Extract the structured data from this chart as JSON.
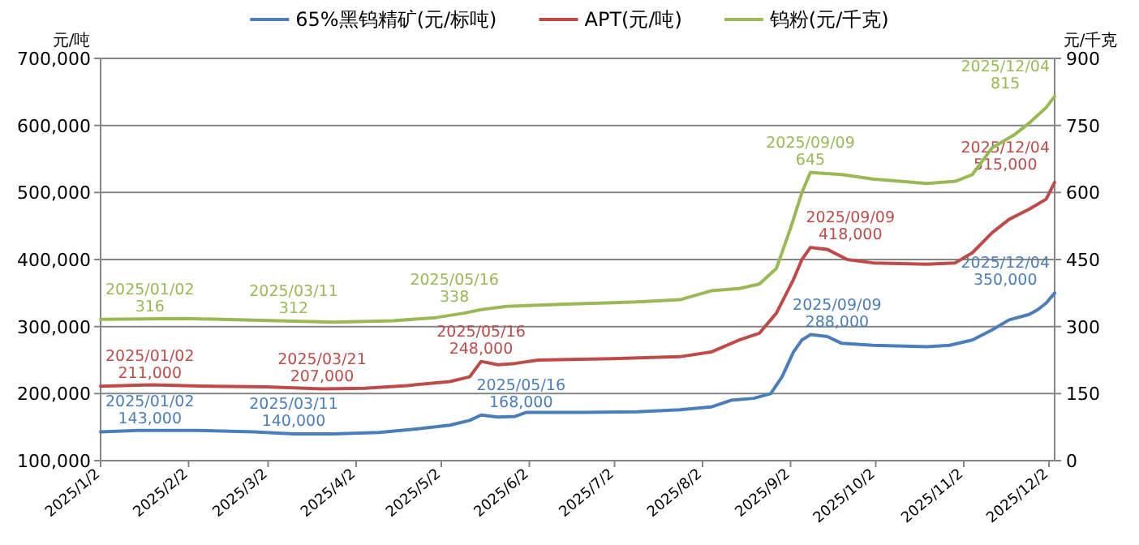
{
  "chart_data": {
    "type": "line",
    "ylabel": "元/吨",
    "y2label": "元/千克",
    "legend": "top",
    "grid": "y",
    "marker": "none",
    "line_style": "solid",
    "xlim": [
      "2025-01-02",
      "2025-12-04"
    ],
    "xticks": [
      {
        "value": "2025-01-02",
        "label": "2025/1/2"
      },
      {
        "value": "2025-02-02",
        "label": "2025/2/2"
      },
      {
        "value": "2025-03-02",
        "label": "2025/3/2"
      },
      {
        "value": "2025-04-02",
        "label": "2025/4/2"
      },
      {
        "value": "2025-05-02",
        "label": "2025/5/2"
      },
      {
        "value": "2025-06-02",
        "label": "2025/6/2"
      },
      {
        "value": "2025-07-02",
        "label": "2025/7/2"
      },
      {
        "value": "2025-08-02",
        "label": "2025/8/2"
      },
      {
        "value": "2025-09-02",
        "label": "2025/9/2"
      },
      {
        "value": "2025-10-02",
        "label": "2025/10/2"
      },
      {
        "value": "2025-11-02",
        "label": "2025/11/2"
      },
      {
        "value": "2025-12-02",
        "label": "2025/12/2"
      }
    ],
    "ylim": [
      100000,
      700000
    ],
    "yticks": [
      {
        "value": 100000,
        "label": "100,000"
      },
      {
        "value": 200000,
        "label": "200,000"
      },
      {
        "value": 300000,
        "label": "300,000"
      },
      {
        "value": 400000,
        "label": "400,000"
      },
      {
        "value": 500000,
        "label": "500,000"
      },
      {
        "value": 600000,
        "label": "600,000"
      },
      {
        "value": 700000,
        "label": "700,000"
      }
    ],
    "y2lim": [
      0,
      900
    ],
    "y2ticks": [
      0,
      150,
      300,
      450,
      600,
      750,
      900
    ],
    "series": [
      {
        "name": "65%黑钨精矿(元/标吨)",
        "color": "#4a7ebb",
        "x": [
          "2025-01-02",
          "2025-01-15",
          "2025-02-05",
          "2025-02-25",
          "2025-03-11",
          "2025-03-25",
          "2025-04-10",
          "2025-04-25",
          "2025-05-05",
          "2025-05-12",
          "2025-05-16",
          "2025-05-22",
          "2025-05-28",
          "2025-06-01",
          "2025-06-20",
          "2025-07-10",
          "2025-07-25",
          "2025-08-05",
          "2025-08-12",
          "2025-08-20",
          "2025-08-26",
          "2025-08-30",
          "2025-09-03",
          "2025-09-06",
          "2025-09-09",
          "2025-09-15",
          "2025-09-20",
          "2025-10-01",
          "2025-10-20",
          "2025-10-28",
          "2025-11-05",
          "2025-11-12",
          "2025-11-18",
          "2025-11-25",
          "2025-11-28",
          "2025-12-01",
          "2025-12-04"
        ],
        "values": [
          143000,
          145000,
          145000,
          143000,
          140000,
          140000,
          142000,
          148000,
          153000,
          160000,
          168000,
          165000,
          166000,
          172000,
          172000,
          173000,
          176000,
          180000,
          190000,
          193000,
          200000,
          225000,
          262000,
          280000,
          288000,
          285000,
          275000,
          272000,
          270000,
          272000,
          280000,
          295000,
          310000,
          318000,
          325000,
          335000,
          350000
        ],
        "value_labels": [
          "2025/01/02\n143,000",
          null,
          null,
          null,
          "2025/03/11\n140,000",
          null,
          null,
          null,
          null,
          null,
          "2025/05/16\n168,000",
          null,
          null,
          null,
          null,
          null,
          null,
          null,
          null,
          null,
          null,
          null,
          null,
          null,
          "2025/09/09\n288,000",
          null,
          null,
          null,
          null,
          null,
          null,
          null,
          null,
          null,
          null,
          null,
          "2025/12/04\n350,000"
        ]
      },
      {
        "name": "APT(元/吨)",
        "color": "#be4b48",
        "x": [
          "2025-01-02",
          "2025-01-20",
          "2025-02-10",
          "2025-03-01",
          "2025-03-21",
          "2025-04-05",
          "2025-04-20",
          "2025-05-05",
          "2025-05-12",
          "2025-05-16",
          "2025-05-22",
          "2025-05-28",
          "2025-06-05",
          "2025-07-01",
          "2025-07-25",
          "2025-08-05",
          "2025-08-15",
          "2025-08-22",
          "2025-08-28",
          "2025-09-03",
          "2025-09-06",
          "2025-09-09",
          "2025-09-15",
          "2025-09-22",
          "2025-10-01",
          "2025-10-20",
          "2025-10-30",
          "2025-11-05",
          "2025-11-12",
          "2025-11-18",
          "2025-11-25",
          "2025-12-01",
          "2025-12-04"
        ],
        "values": [
          211000,
          213000,
          211000,
          210000,
          207000,
          208000,
          212000,
          218000,
          225000,
          248000,
          243000,
          245000,
          250000,
          252000,
          255000,
          262000,
          280000,
          290000,
          320000,
          370000,
          400000,
          418000,
          415000,
          400000,
          395000,
          393000,
          395000,
          410000,
          440000,
          460000,
          475000,
          490000,
          515000
        ],
        "value_labels": [
          "2025/01/02\n211,000",
          null,
          null,
          null,
          "2025/03/21\n207,000",
          null,
          null,
          null,
          null,
          "2025/05/16\n248,000",
          null,
          null,
          null,
          null,
          null,
          null,
          null,
          null,
          null,
          null,
          null,
          "2025/09/09\n418,000",
          null,
          null,
          null,
          null,
          null,
          null,
          null,
          null,
          null,
          null,
          "2025/12/04\n515,000"
        ]
      },
      {
        "name": "钨粉(元/千克)",
        "color": "#98b954",
        "axis": "y2",
        "x": [
          "2025-01-02",
          "2025-02-01",
          "2025-03-11",
          "2025-03-25",
          "2025-04-15",
          "2025-04-30",
          "2025-05-10",
          "2025-05-16",
          "2025-05-25",
          "2025-06-15",
          "2025-07-10",
          "2025-07-25",
          "2025-08-05",
          "2025-08-15",
          "2025-08-22",
          "2025-08-28",
          "2025-09-02",
          "2025-09-06",
          "2025-09-09",
          "2025-09-20",
          "2025-10-01",
          "2025-10-20",
          "2025-10-30",
          "2025-11-05",
          "2025-11-12",
          "2025-11-20",
          "2025-11-25",
          "2025-12-01",
          "2025-12-04"
        ],
        "values": [
          316,
          318,
          312,
          310,
          313,
          320,
          330,
          338,
          345,
          350,
          355,
          360,
          380,
          385,
          395,
          430,
          520,
          600,
          645,
          640,
          630,
          620,
          625,
          640,
          700,
          730,
          755,
          790,
          815
        ],
        "value_labels": [
          "2025/01/02\n316",
          null,
          "2025/03/11\n312",
          null,
          null,
          null,
          null,
          "2025/05/16\n338",
          null,
          null,
          null,
          null,
          null,
          null,
          null,
          null,
          null,
          null,
          "2025/09/09\n645",
          null,
          null,
          null,
          null,
          null,
          null,
          null,
          null,
          null,
          "2025/12/04\n815"
        ]
      }
    ]
  }
}
